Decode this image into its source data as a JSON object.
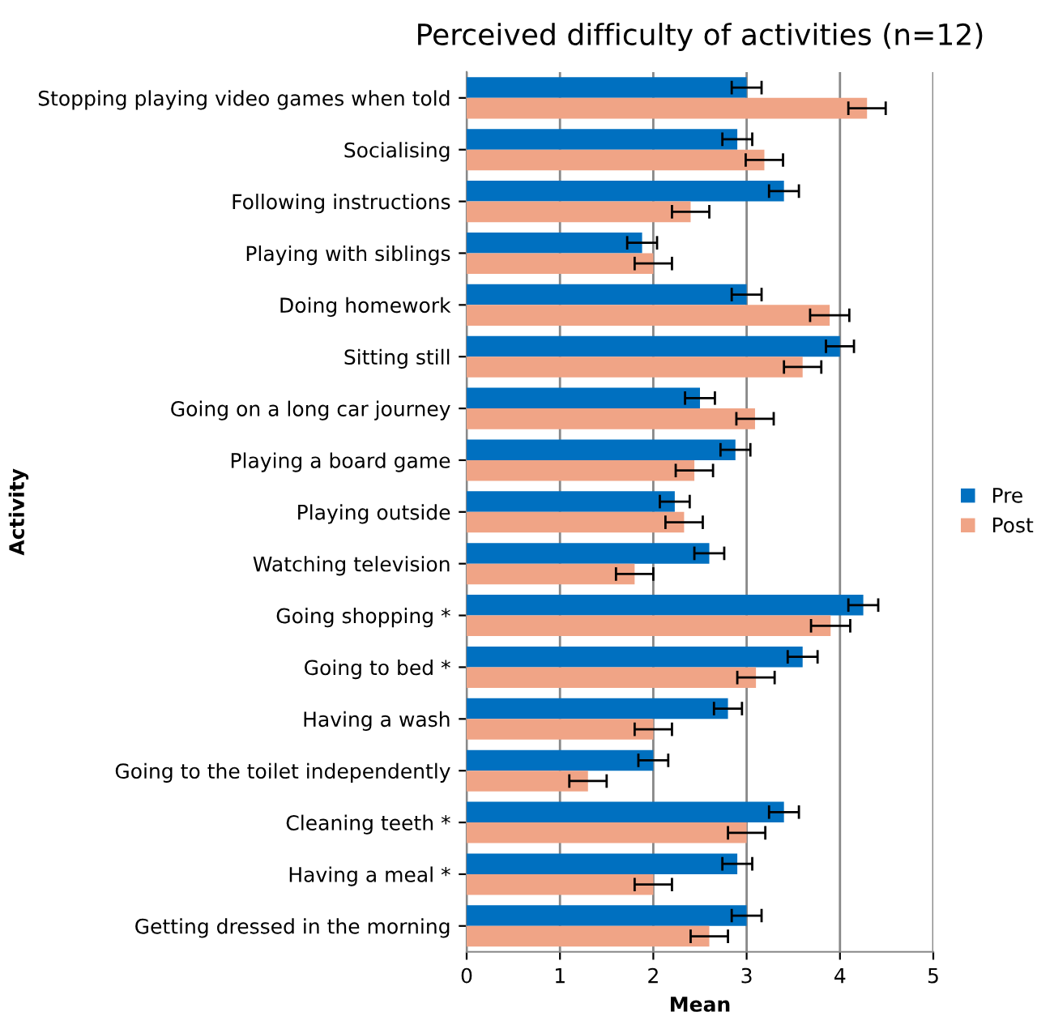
{
  "chart_data": {
    "type": "bar",
    "orientation": "horizontal",
    "title": "Perceived difficulty of activities (n=12)",
    "xlabel": "Mean",
    "ylabel": "Activity",
    "categories": [
      "Stopping playing video games when told",
      "Socialising",
      "Following instructions",
      "Playing with siblings",
      "Doing homework",
      "Sitting still",
      "Going on a long car journey",
      "Playing a board game",
      "Playing outside",
      "Watching television",
      "Going shopping *",
      "Going to bed *",
      "Having a wash",
      "Going to the toilet independently",
      "Cleaning teeth *",
      "Having a meal *",
      "Getting dressed in the morning"
    ],
    "series": [
      {
        "name": "Pre",
        "color": "#0070c0",
        "values": [
          3.0,
          2.9,
          3.4,
          1.88,
          3.0,
          4.0,
          2.5,
          2.88,
          2.23,
          2.6,
          4.25,
          3.6,
          2.8,
          2.0,
          3.4,
          2.9,
          3.0
        ],
        "errors": [
          0.16,
          0.16,
          0.16,
          0.16,
          0.16,
          0.15,
          0.16,
          0.16,
          0.16,
          0.16,
          0.16,
          0.16,
          0.15,
          0.16,
          0.16,
          0.16,
          0.16
        ]
      },
      {
        "name": "Post",
        "color": "#f0a486",
        "values": [
          4.29,
          3.19,
          2.4,
          2.0,
          3.89,
          3.6,
          3.09,
          2.44,
          2.33,
          1.8,
          3.9,
          3.1,
          2.0,
          1.3,
          3.0,
          2.0,
          2.6
        ],
        "errors": [
          0.2,
          0.2,
          0.2,
          0.2,
          0.21,
          0.2,
          0.2,
          0.2,
          0.2,
          0.2,
          0.21,
          0.2,
          0.2,
          0.2,
          0.2,
          0.2,
          0.2
        ]
      }
    ],
    "xlim": [
      0,
      5
    ],
    "xticks": [
      0,
      1,
      2,
      3,
      4,
      5
    ],
    "grid": "x",
    "legend": "right"
  }
}
